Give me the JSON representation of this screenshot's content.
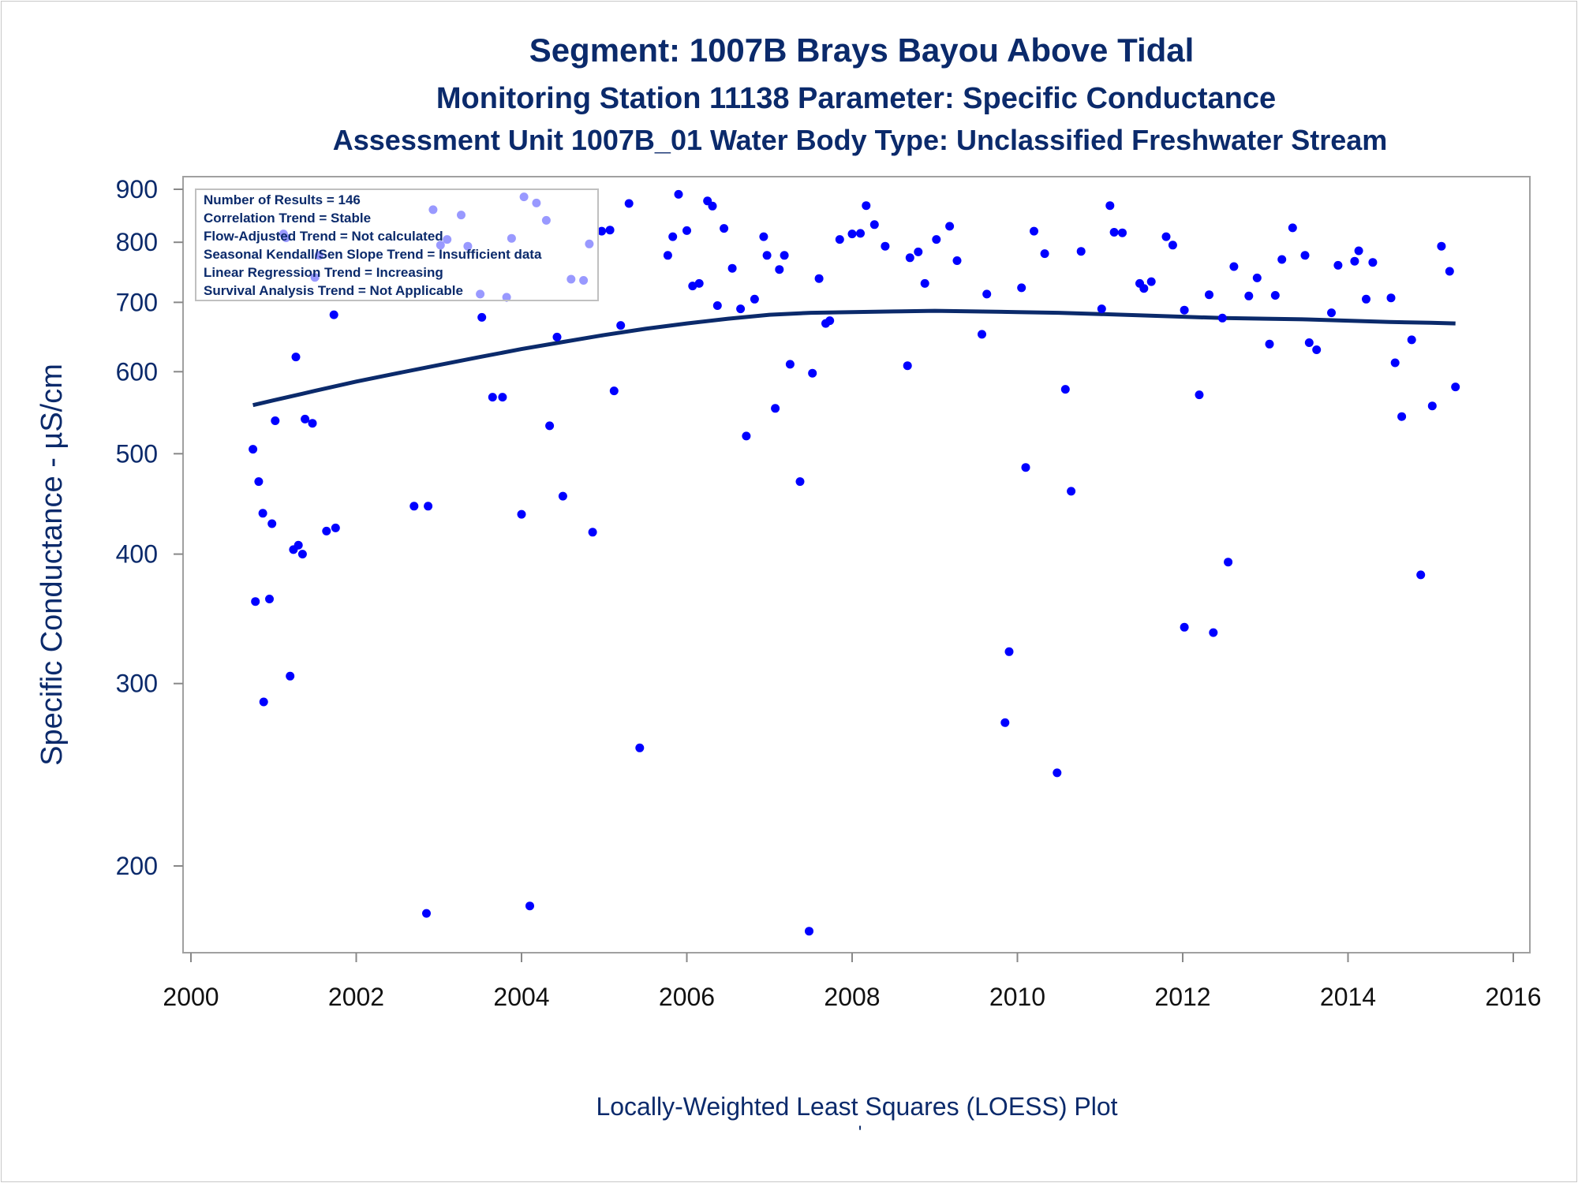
{
  "chart_data": {
    "type": "scatter",
    "title": "Segment: 1007B  Brays Bayou Above Tidal",
    "subtitle": "Monitoring Station 11138 Parameter: Specific Conductance",
    "subtitle2": "Assessment Unit 1007B_01   Water Body Type: Unclassified Freshwater Stream",
    "ylabel": "Specific Conductance -  µS/cm",
    "xlabel": "Locally-Weighted Least Squares (LOESS) Plot",
    "footnote": "'",
    "y_scale": "log",
    "xlim": [
      2000,
      2016
    ],
    "ylim": [
      170,
      920
    ],
    "x_ticks": [
      2000,
      2002,
      2004,
      2006,
      2008,
      2010,
      2012,
      2014,
      2016
    ],
    "y_ticks": [
      200,
      300,
      400,
      500,
      600,
      700,
      800,
      900
    ],
    "grid": false,
    "stats_box": [
      "Number of Results = 146",
      "Correlation Trend = Stable",
      "Flow-Adjusted Trend = Not calculated",
      "Seasonal Kendall/Sen Slope Trend = Insufficient data",
      "Linear Regression Trend = Increasing",
      "Survival Analysis Trend = Not Applicable"
    ],
    "colors": {
      "points": "#0000ff",
      "loess": "#0b2a6b",
      "text": "#0b2a6b"
    },
    "series": [
      {
        "type": "scatter",
        "points": [
          [
            2000.75,
            505
          ],
          [
            2000.78,
            360
          ],
          [
            2000.82,
            470
          ],
          [
            2000.87,
            438
          ],
          [
            2000.88,
            288
          ],
          [
            2000.95,
            362
          ],
          [
            2000.98,
            428
          ],
          [
            2001.02,
            538
          ],
          [
            2001.12,
            815
          ],
          [
            2001.15,
            808
          ],
          [
            2001.2,
            305
          ],
          [
            2001.24,
            404
          ],
          [
            2001.27,
            620
          ],
          [
            2001.3,
            408
          ],
          [
            2001.35,
            400
          ],
          [
            2001.38,
            540
          ],
          [
            2001.47,
            535
          ],
          [
            2001.5,
            740
          ],
          [
            2001.55,
            777
          ],
          [
            2001.64,
            421
          ],
          [
            2001.73,
            681
          ],
          [
            2001.75,
            424
          ],
          [
            2002.7,
            445
          ],
          [
            2002.85,
            180
          ],
          [
            2002.87,
            445
          ],
          [
            2002.93,
            860
          ],
          [
            2003.02,
            795
          ],
          [
            2003.1,
            805
          ],
          [
            2003.27,
            850
          ],
          [
            2003.35,
            793
          ],
          [
            2003.5,
            713
          ],
          [
            2003.52,
            677
          ],
          [
            2003.65,
            567
          ],
          [
            2003.77,
            567
          ],
          [
            2003.82,
            708
          ],
          [
            2003.88,
            807
          ],
          [
            2004.0,
            437
          ],
          [
            2004.03,
            885
          ],
          [
            2004.1,
            183
          ],
          [
            2004.18,
            873
          ],
          [
            2004.3,
            840
          ],
          [
            2004.34,
            532
          ],
          [
            2004.43,
            648
          ],
          [
            2004.5,
            455
          ],
          [
            2004.6,
            737
          ],
          [
            2004.75,
            735
          ],
          [
            2004.82,
            797
          ],
          [
            2004.86,
            420
          ],
          [
            2004.97,
            820
          ],
          [
            2005.07,
            822
          ],
          [
            2005.12,
            575
          ],
          [
            2005.2,
            665
          ],
          [
            2005.3,
            872
          ],
          [
            2005.43,
            260
          ],
          [
            2005.77,
            777
          ],
          [
            2005.83,
            810
          ],
          [
            2005.9,
            890
          ],
          [
            2006.0,
            821
          ],
          [
            2006.07,
            726
          ],
          [
            2006.15,
            730
          ],
          [
            2006.25,
            877
          ],
          [
            2006.31,
            867
          ],
          [
            2006.37,
            695
          ],
          [
            2006.45,
            825
          ],
          [
            2006.55,
            755
          ],
          [
            2006.65,
            690
          ],
          [
            2006.72,
            520
          ],
          [
            2006.82,
            705
          ],
          [
            2006.93,
            810
          ],
          [
            2006.97,
            777
          ],
          [
            2007.07,
            553
          ],
          [
            2007.12,
            753
          ],
          [
            2007.18,
            777
          ],
          [
            2007.25,
            610
          ],
          [
            2007.37,
            470
          ],
          [
            2007.48,
            173
          ],
          [
            2007.52,
            598
          ],
          [
            2007.6,
            738
          ],
          [
            2007.68,
            668
          ],
          [
            2007.73,
            672
          ],
          [
            2007.85,
            805
          ],
          [
            2008.0,
            815
          ],
          [
            2008.1,
            816
          ],
          [
            2008.17,
            868
          ],
          [
            2008.27,
            832
          ],
          [
            2008.4,
            793
          ],
          [
            2008.67,
            608
          ],
          [
            2008.7,
            773
          ],
          [
            2008.8,
            783
          ],
          [
            2008.88,
            730
          ],
          [
            2009.02,
            805
          ],
          [
            2009.18,
            829
          ],
          [
            2009.27,
            768
          ],
          [
            2009.57,
            652
          ],
          [
            2009.63,
            713
          ],
          [
            2009.85,
            275
          ],
          [
            2009.9,
            322
          ],
          [
            2010.05,
            723
          ],
          [
            2010.1,
            485
          ],
          [
            2010.2,
            820
          ],
          [
            2010.33,
            780
          ],
          [
            2010.48,
            246
          ],
          [
            2010.58,
            577
          ],
          [
            2010.65,
            460
          ],
          [
            2010.77,
            784
          ],
          [
            2011.02,
            690
          ],
          [
            2011.12,
            868
          ],
          [
            2011.17,
            818
          ],
          [
            2011.27,
            817
          ],
          [
            2011.48,
            730
          ],
          [
            2011.53,
            722
          ],
          [
            2011.62,
            733
          ],
          [
            2011.8,
            810
          ],
          [
            2011.88,
            795
          ],
          [
            2012.02,
            688
          ],
          [
            2012.2,
            570
          ],
          [
            2012.32,
            712
          ],
          [
            2012.37,
            336
          ],
          [
            2012.48,
            676
          ],
          [
            2012.55,
            393
          ],
          [
            2012.62,
            758
          ],
          [
            2012.8,
            710
          ],
          [
            2012.9,
            739
          ],
          [
            2013.05,
            638
          ],
          [
            2013.12,
            711
          ],
          [
            2013.2,
            770
          ],
          [
            2013.33,
            826
          ],
          [
            2013.48,
            777
          ],
          [
            2013.53,
            640
          ],
          [
            2013.62,
            630
          ],
          [
            2013.8,
            684
          ],
          [
            2013.88,
            760
          ],
          [
            2014.08,
            767
          ],
          [
            2014.13,
            785
          ],
          [
            2014.22,
            705
          ],
          [
            2014.3,
            765
          ],
          [
            2014.52,
            707
          ],
          [
            2014.57,
            612
          ],
          [
            2014.65,
            543
          ],
          [
            2014.77,
            644
          ],
          [
            2014.88,
            382
          ],
          [
            2015.02,
            556
          ],
          [
            2015.13,
            793
          ],
          [
            2015.23,
            750
          ],
          [
            2015.3,
            580
          ],
          [
            2012.02,
            340
          ]
        ]
      },
      {
        "type": "line",
        "points": [
          [
            2000.75,
            557
          ],
          [
            2001.0,
            563
          ],
          [
            2001.5,
            575
          ],
          [
            2002.0,
            587
          ],
          [
            2002.5,
            598
          ],
          [
            2003.0,
            609
          ],
          [
            2003.5,
            620
          ],
          [
            2004.0,
            631
          ],
          [
            2004.5,
            641
          ],
          [
            2005.0,
            651
          ],
          [
            2005.5,
            660
          ],
          [
            2006.0,
            668
          ],
          [
            2006.5,
            675
          ],
          [
            2007.0,
            681
          ],
          [
            2007.5,
            684
          ],
          [
            2008.0,
            685
          ],
          [
            2008.5,
            686
          ],
          [
            2009.0,
            687
          ],
          [
            2009.5,
            686
          ],
          [
            2010.0,
            685
          ],
          [
            2010.5,
            684
          ],
          [
            2011.0,
            682
          ],
          [
            2011.5,
            680
          ],
          [
            2012.0,
            678
          ],
          [
            2012.5,
            676
          ],
          [
            2013.0,
            675
          ],
          [
            2013.5,
            674
          ],
          [
            2014.0,
            672
          ],
          [
            2014.5,
            670
          ],
          [
            2015.0,
            669
          ],
          [
            2015.3,
            668
          ]
        ]
      }
    ]
  }
}
